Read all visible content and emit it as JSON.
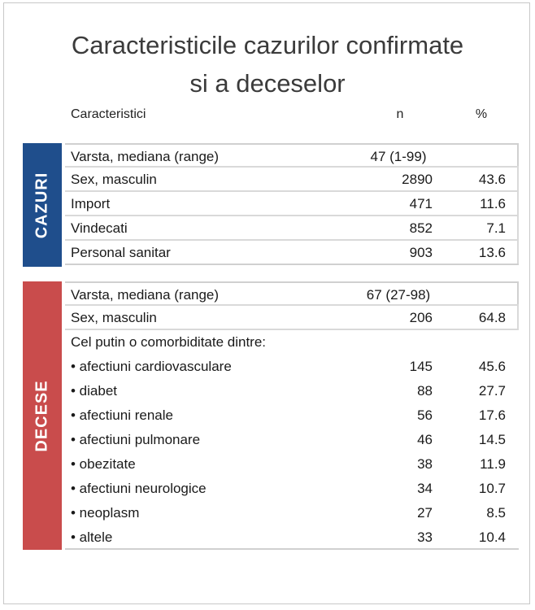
{
  "title_line1": "Caracteristicile cazurilor confirmate",
  "title_line2": "si a deceselor",
  "header": {
    "characteristics": "Caracteristici",
    "n": "n",
    "percent": "%"
  },
  "cazuri": {
    "label": "CAZURI",
    "color": "#1f4e8c",
    "median": {
      "label": "Varsta, mediana (range)",
      "value": "47 (1-99)"
    },
    "rows": [
      {
        "label": "Sex, masculin",
        "n": "2890",
        "pct": "43.6"
      },
      {
        "label": "Import",
        "n": "471",
        "pct": "11.6"
      },
      {
        "label": "Vindecati",
        "n": "852",
        "pct": "7.1"
      },
      {
        "label": "Personal sanitar",
        "n": "903",
        "pct": "13.6"
      }
    ]
  },
  "decese": {
    "label": "DECESE",
    "color": "#c94c4c",
    "median": {
      "label": "Varsta, mediana (range)",
      "value": "67 (27-98)"
    },
    "sex": {
      "label": "Sex, masculin",
      "n": "206",
      "pct": "64.8"
    },
    "comorbidity_heading": "Cel putin o comorbiditate dintre:",
    "rows": [
      {
        "label": "• afectiuni cardiovasculare",
        "n": "145",
        "pct": "45.6"
      },
      {
        "label": "• diabet",
        "n": "88",
        "pct": "27.7"
      },
      {
        "label": "• afectiuni renale",
        "n": "56",
        "pct": "17.6"
      },
      {
        "label": "• afectiuni pulmonare",
        "n": "46",
        "pct": "14.5"
      },
      {
        "label": "• obezitate",
        "n": "38",
        "pct": "11.9"
      },
      {
        "label": "• afectiuni neurologice",
        "n": "34",
        "pct": "10.7"
      },
      {
        "label": "• neoplasm",
        "n": "27",
        "pct": "8.5"
      },
      {
        "label": "• altele",
        "n": "33",
        "pct": "10.4"
      }
    ]
  }
}
